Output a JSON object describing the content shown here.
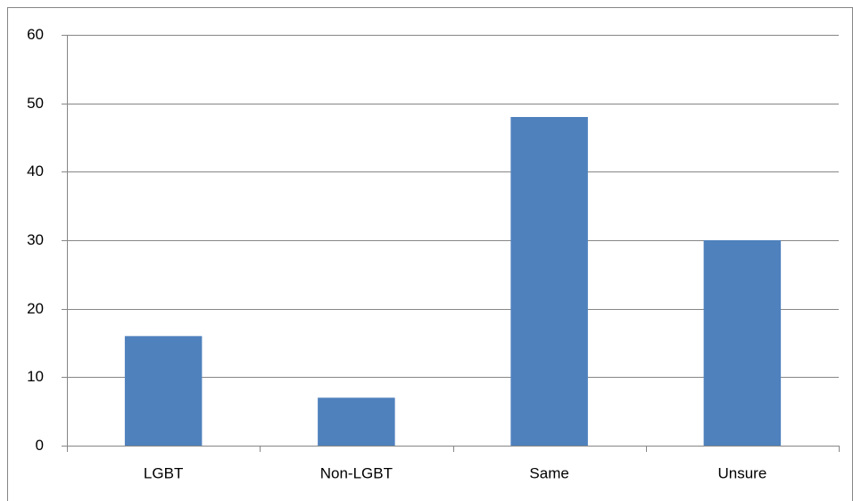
{
  "chart_data": {
    "type": "bar",
    "categories": [
      "LGBT",
      "Non-LGBT",
      "Same",
      "Unsure"
    ],
    "values": [
      16,
      7,
      48,
      30
    ],
    "color": "#4f81bd",
    "ylim": [
      0,
      60
    ],
    "yticks": [
      0,
      10,
      20,
      30,
      40,
      50,
      60
    ],
    "grid": true
  }
}
